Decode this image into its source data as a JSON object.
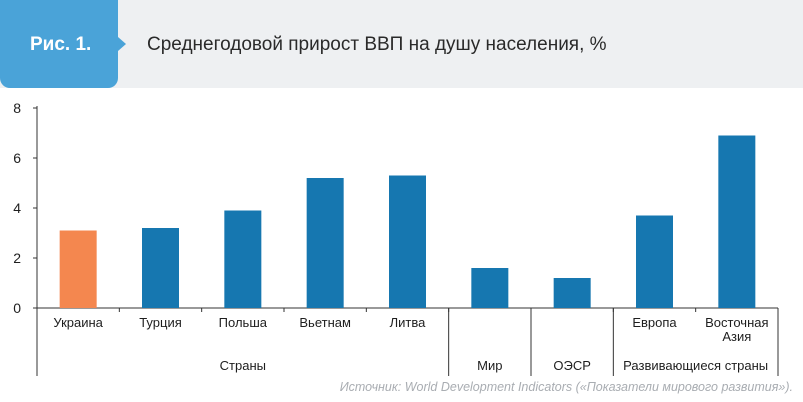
{
  "header": {
    "figure_label": "Рис. 1.",
    "title": "Среднегодовой прирост ВВП на душу населения, %"
  },
  "colors": {
    "highlight": "#f4874f",
    "bar": "#1677b0",
    "badge": "#4aa3d8",
    "header_bg": "#eef0f2"
  },
  "source": "Источник: World Development Indicators («Показатели мирового развития»).",
  "chart_data": {
    "type": "bar",
    "title": "Среднегодовой прирост ВВП на душу населения, %",
    "ylim": [
      0,
      8
    ],
    "y_ticks": [
      "0",
      "2",
      "4",
      "6",
      "8"
    ],
    "categories": [
      "Украина",
      "Турция",
      "Польша",
      "Вьетнам",
      "Литва",
      "Мир",
      "ОЭСР",
      "Европа",
      "Восточная Азия"
    ],
    "category_lines": [
      [
        "Украина"
      ],
      [
        "Турция"
      ],
      [
        "Польша"
      ],
      [
        "Вьетнам"
      ],
      [
        "Литва"
      ],
      [],
      [],
      [
        "Европа"
      ],
      [
        "Восточная",
        "Азия"
      ]
    ],
    "values": [
      3.1,
      3.2,
      3.9,
      5.2,
      5.3,
      1.6,
      1.2,
      3.7,
      6.9
    ],
    "highlight_index": 0,
    "groups": [
      {
        "label": "Страны",
        "count": 5
      },
      {
        "label": "Мир",
        "count": 1
      },
      {
        "label": "ОЭСР",
        "count": 1
      },
      {
        "label": "Развивающиеся страны",
        "count": 2
      }
    ],
    "grid": false
  }
}
